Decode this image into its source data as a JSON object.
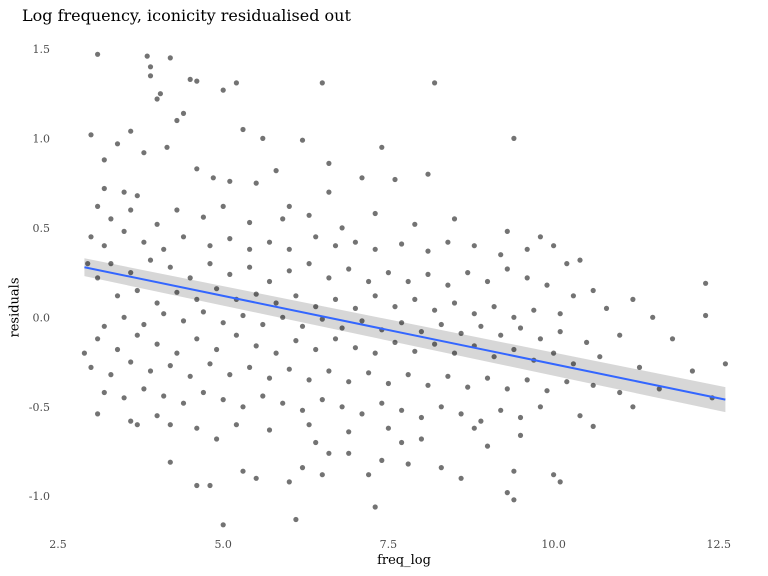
{
  "chart_data": {
    "type": "scatter",
    "title": "Log frequency, iconicity residualised out",
    "xlabel": "freq_log",
    "ylabel": "residuals",
    "xlim": [
      2.5,
      12.7
    ],
    "ylim": [
      -1.2,
      1.55
    ],
    "x_ticks": [
      "2.5",
      "5.0",
      "7.5",
      "10.0",
      "12.5"
    ],
    "y_ticks": [
      "-1.0",
      "-0.5",
      "0.0",
      "0.5",
      "1.0",
      "1.5"
    ],
    "grid": false,
    "trend": {
      "method": "linear fit with confidence band",
      "x": [
        2.9,
        12.6
      ],
      "y": [
        0.28,
        -0.46
      ],
      "ci_halfwidth": [
        0.05,
        0.07
      ],
      "color": "#3366ff",
      "band_color": "#bdbdbd"
    },
    "point_color": "#000000",
    "point_opacity": 0.55,
    "series": [
      {
        "values": [
          [
            3.1,
            1.47
          ],
          [
            3.85,
            1.46
          ],
          [
            4.2,
            1.45
          ],
          [
            3.9,
            1.4
          ],
          [
            4.5,
            1.33
          ],
          [
            5.2,
            1.31
          ],
          [
            6.5,
            1.31
          ],
          [
            8.2,
            1.31
          ],
          [
            3.9,
            1.35
          ],
          [
            4.6,
            1.32
          ],
          [
            5.0,
            1.27
          ],
          [
            4.0,
            1.22
          ],
          [
            4.4,
            1.14
          ],
          [
            4.05,
            1.25
          ],
          [
            3.0,
            1.02
          ],
          [
            3.4,
            0.97
          ],
          [
            3.6,
            1.04
          ],
          [
            3.8,
            0.92
          ],
          [
            4.15,
            0.95
          ],
          [
            4.3,
            1.1
          ],
          [
            5.3,
            1.05
          ],
          [
            5.6,
            1.0
          ],
          [
            6.2,
            0.99
          ],
          [
            7.4,
            0.95
          ],
          [
            9.4,
            1.0
          ],
          [
            3.2,
            0.88
          ],
          [
            3.2,
            0.72
          ],
          [
            3.5,
            0.7
          ],
          [
            3.7,
            0.68
          ],
          [
            4.6,
            0.83
          ],
          [
            4.85,
            0.78
          ],
          [
            5.1,
            0.76
          ],
          [
            5.5,
            0.75
          ],
          [
            5.8,
            0.82
          ],
          [
            6.6,
            0.86
          ],
          [
            7.1,
            0.78
          ],
          [
            7.6,
            0.77
          ],
          [
            8.1,
            0.8
          ],
          [
            6.0,
            0.62
          ],
          [
            6.6,
            0.7
          ],
          [
            3.1,
            0.62
          ],
          [
            3.3,
            0.55
          ],
          [
            3.6,
            0.6
          ],
          [
            4.0,
            0.52
          ],
          [
            4.3,
            0.6
          ],
          [
            4.7,
            0.56
          ],
          [
            5.0,
            0.62
          ],
          [
            5.4,
            0.53
          ],
          [
            5.9,
            0.55
          ],
          [
            6.3,
            0.57
          ],
          [
            6.8,
            0.5
          ],
          [
            7.3,
            0.58
          ],
          [
            7.9,
            0.52
          ],
          [
            8.5,
            0.55
          ],
          [
            9.3,
            0.48
          ],
          [
            9.8,
            0.45
          ],
          [
            3.0,
            0.45
          ],
          [
            3.2,
            0.4
          ],
          [
            3.5,
            0.48
          ],
          [
            3.8,
            0.42
          ],
          [
            4.1,
            0.38
          ],
          [
            4.4,
            0.45
          ],
          [
            4.8,
            0.4
          ],
          [
            5.1,
            0.44
          ],
          [
            5.4,
            0.38
          ],
          [
            5.7,
            0.42
          ],
          [
            6.0,
            0.38
          ],
          [
            6.4,
            0.45
          ],
          [
            6.7,
            0.4
          ],
          [
            7.0,
            0.42
          ],
          [
            7.3,
            0.38
          ],
          [
            7.7,
            0.41
          ],
          [
            8.1,
            0.37
          ],
          [
            8.4,
            0.42
          ],
          [
            8.8,
            0.4
          ],
          [
            9.2,
            0.35
          ],
          [
            9.6,
            0.38
          ],
          [
            10.0,
            0.4
          ],
          [
            10.4,
            0.32
          ],
          [
            10.2,
            0.3
          ],
          [
            2.95,
            0.3
          ],
          [
            3.1,
            0.22
          ],
          [
            3.3,
            0.3
          ],
          [
            3.6,
            0.25
          ],
          [
            3.9,
            0.32
          ],
          [
            4.2,
            0.28
          ],
          [
            4.5,
            0.22
          ],
          [
            4.8,
            0.3
          ],
          [
            5.1,
            0.24
          ],
          [
            5.4,
            0.28
          ],
          [
            5.7,
            0.2
          ],
          [
            6.0,
            0.26
          ],
          [
            6.3,
            0.3
          ],
          [
            6.6,
            0.22
          ],
          [
            6.9,
            0.27
          ],
          [
            7.2,
            0.2
          ],
          [
            7.5,
            0.25
          ],
          [
            7.8,
            0.2
          ],
          [
            8.1,
            0.24
          ],
          [
            8.4,
            0.18
          ],
          [
            8.7,
            0.25
          ],
          [
            9.0,
            0.2
          ],
          [
            9.3,
            0.27
          ],
          [
            9.6,
            0.22
          ],
          [
            9.9,
            0.18
          ],
          [
            10.3,
            0.12
          ],
          [
            10.6,
            0.15
          ],
          [
            11.2,
            0.1
          ],
          [
            12.3,
            0.19
          ],
          [
            3.4,
            0.12
          ],
          [
            3.7,
            0.15
          ],
          [
            4.0,
            0.08
          ],
          [
            4.3,
            0.14
          ],
          [
            4.6,
            0.1
          ],
          [
            4.9,
            0.16
          ],
          [
            5.2,
            0.1
          ],
          [
            5.5,
            0.13
          ],
          [
            5.8,
            0.08
          ],
          [
            6.1,
            0.12
          ],
          [
            6.4,
            0.06
          ],
          [
            6.7,
            0.1
          ],
          [
            7.0,
            0.05
          ],
          [
            7.3,
            0.12
          ],
          [
            7.6,
            0.06
          ],
          [
            7.9,
            0.1
          ],
          [
            8.2,
            0.04
          ],
          [
            8.5,
            0.08
          ],
          [
            8.8,
            0.02
          ],
          [
            9.1,
            0.06
          ],
          [
            9.4,
            0.0
          ],
          [
            9.7,
            0.04
          ],
          [
            10.1,
            0.02
          ],
          [
            10.8,
            0.05
          ],
          [
            11.5,
            0.0
          ],
          [
            12.3,
            0.01
          ],
          [
            3.2,
            -0.05
          ],
          [
            3.5,
            0.0
          ],
          [
            3.8,
            -0.04
          ],
          [
            4.1,
            0.02
          ],
          [
            4.4,
            -0.02
          ],
          [
            4.7,
            0.03
          ],
          [
            5.0,
            -0.03
          ],
          [
            5.3,
            0.01
          ],
          [
            5.6,
            -0.04
          ],
          [
            5.9,
            0.0
          ],
          [
            6.2,
            -0.05
          ],
          [
            6.5,
            -0.01
          ],
          [
            6.8,
            -0.06
          ],
          [
            7.1,
            -0.02
          ],
          [
            7.4,
            -0.07
          ],
          [
            7.7,
            -0.03
          ],
          [
            8.0,
            -0.08
          ],
          [
            8.3,
            -0.04
          ],
          [
            8.6,
            -0.09
          ],
          [
            8.9,
            -0.05
          ],
          [
            9.2,
            -0.1
          ],
          [
            9.5,
            -0.06
          ],
          [
            9.8,
            -0.12
          ],
          [
            10.1,
            -0.08
          ],
          [
            10.5,
            -0.14
          ],
          [
            11.0,
            -0.1
          ],
          [
            11.8,
            -0.12
          ],
          [
            2.9,
            -0.2
          ],
          [
            3.1,
            -0.12
          ],
          [
            3.4,
            -0.18
          ],
          [
            3.7,
            -0.1
          ],
          [
            4.0,
            -0.15
          ],
          [
            4.3,
            -0.2
          ],
          [
            4.6,
            -0.12
          ],
          [
            4.9,
            -0.18
          ],
          [
            5.2,
            -0.1
          ],
          [
            5.5,
            -0.16
          ],
          [
            5.8,
            -0.2
          ],
          [
            6.1,
            -0.13
          ],
          [
            6.4,
            -0.18
          ],
          [
            6.7,
            -0.12
          ],
          [
            7.0,
            -0.17
          ],
          [
            7.3,
            -0.2
          ],
          [
            7.6,
            -0.14
          ],
          [
            7.9,
            -0.19
          ],
          [
            8.2,
            -0.15
          ],
          [
            8.5,
            -0.2
          ],
          [
            8.8,
            -0.16
          ],
          [
            9.1,
            -0.22
          ],
          [
            9.4,
            -0.18
          ],
          [
            9.7,
            -0.24
          ],
          [
            10.0,
            -0.2
          ],
          [
            10.3,
            -0.26
          ],
          [
            10.7,
            -0.22
          ],
          [
            11.3,
            -0.28
          ],
          [
            12.1,
            -0.3
          ],
          [
            12.6,
            -0.26
          ],
          [
            3.0,
            -0.28
          ],
          [
            3.3,
            -0.32
          ],
          [
            3.6,
            -0.25
          ],
          [
            3.9,
            -0.3
          ],
          [
            4.2,
            -0.27
          ],
          [
            4.5,
            -0.33
          ],
          [
            4.8,
            -0.26
          ],
          [
            5.1,
            -0.32
          ],
          [
            5.4,
            -0.28
          ],
          [
            5.7,
            -0.34
          ],
          [
            6.0,
            -0.29
          ],
          [
            6.3,
            -0.35
          ],
          [
            6.6,
            -0.3
          ],
          [
            6.9,
            -0.36
          ],
          [
            7.2,
            -0.31
          ],
          [
            7.5,
            -0.37
          ],
          [
            7.8,
            -0.32
          ],
          [
            8.1,
            -0.38
          ],
          [
            8.4,
            -0.33
          ],
          [
            8.7,
            -0.39
          ],
          [
            9.0,
            -0.34
          ],
          [
            9.3,
            -0.4
          ],
          [
            9.6,
            -0.35
          ],
          [
            9.9,
            -0.41
          ],
          [
            10.2,
            -0.36
          ],
          [
            10.6,
            -0.38
          ],
          [
            11.0,
            -0.42
          ],
          [
            11.6,
            -0.4
          ],
          [
            12.4,
            -0.45
          ],
          [
            3.2,
            -0.42
          ],
          [
            3.5,
            -0.45
          ],
          [
            3.8,
            -0.4
          ],
          [
            4.1,
            -0.44
          ],
          [
            4.4,
            -0.48
          ],
          [
            4.7,
            -0.42
          ],
          [
            5.0,
            -0.46
          ],
          [
            5.3,
            -0.5
          ],
          [
            5.6,
            -0.44
          ],
          [
            5.9,
            -0.48
          ],
          [
            6.2,
            -0.52
          ],
          [
            6.5,
            -0.46
          ],
          [
            6.8,
            -0.5
          ],
          [
            7.1,
            -0.54
          ],
          [
            7.4,
            -0.48
          ],
          [
            7.7,
            -0.52
          ],
          [
            8.0,
            -0.56
          ],
          [
            8.3,
            -0.5
          ],
          [
            8.6,
            -0.54
          ],
          [
            8.9,
            -0.58
          ],
          [
            9.2,
            -0.52
          ],
          [
            9.5,
            -0.56
          ],
          [
            9.8,
            -0.5
          ],
          [
            10.4,
            -0.55
          ],
          [
            11.2,
            -0.5
          ],
          [
            3.1,
            -0.54
          ],
          [
            3.6,
            -0.58
          ],
          [
            4.0,
            -0.55
          ],
          [
            4.2,
            -0.6
          ],
          [
            4.6,
            -0.62
          ],
          [
            5.2,
            -0.6
          ],
          [
            5.7,
            -0.63
          ],
          [
            6.3,
            -0.6
          ],
          [
            6.9,
            -0.64
          ],
          [
            7.5,
            -0.62
          ],
          [
            8.0,
            -0.68
          ],
          [
            8.8,
            -0.62
          ],
          [
            9.5,
            -0.66
          ],
          [
            10.6,
            -0.61
          ],
          [
            3.7,
            -0.6
          ],
          [
            4.9,
            -0.68
          ],
          [
            6.4,
            -0.7
          ],
          [
            7.7,
            -0.7
          ],
          [
            9.0,
            -0.72
          ],
          [
            6.6,
            -0.76
          ],
          [
            6.9,
            -0.76
          ],
          [
            7.4,
            -0.8
          ],
          [
            7.8,
            -0.82
          ],
          [
            6.2,
            -0.84
          ],
          [
            8.3,
            -0.84
          ],
          [
            9.4,
            -0.86
          ],
          [
            4.2,
            -0.81
          ],
          [
            5.5,
            -0.9
          ],
          [
            6.5,
            -0.88
          ],
          [
            7.2,
            -0.88
          ],
          [
            8.6,
            -0.9
          ],
          [
            4.6,
            -0.94
          ],
          [
            4.8,
            -0.94
          ],
          [
            9.3,
            -0.98
          ],
          [
            9.4,
            -1.02
          ],
          [
            7.3,
            -1.06
          ],
          [
            6.1,
            -1.13
          ],
          [
            5.0,
            -1.16
          ],
          [
            10.0,
            -0.88
          ],
          [
            10.1,
            -0.92
          ],
          [
            6.0,
            -0.92
          ],
          [
            5.3,
            -0.86
          ]
        ]
      }
    ]
  }
}
